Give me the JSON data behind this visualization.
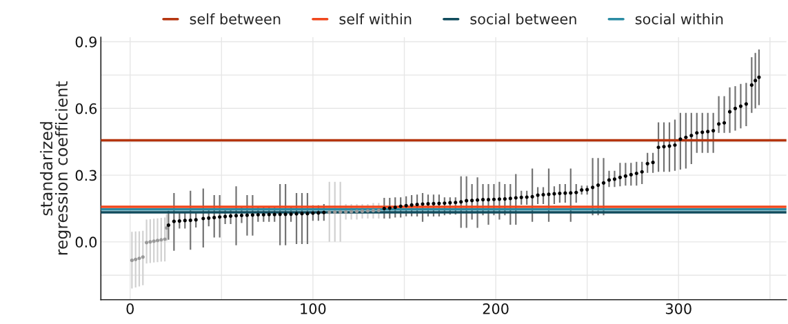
{
  "chart_data": {
    "type": "scatter",
    "ylabel": "standarized\nregression coefficient",
    "xlim": [
      -16,
      359
    ],
    "ylim": [
      -0.26,
      0.92
    ],
    "xticks": [
      0,
      {
        "value": 50,
        "label": null
      },
      100,
      {
        "value": 150,
        "label": null
      },
      200,
      {
        "value": 250,
        "label": null
      },
      300,
      {
        "value": 350,
        "label": null
      }
    ],
    "yticks": [
      {
        "value": -0.15,
        "label": null
      },
      {
        "value": 0,
        "label": "0.0"
      },
      {
        "value": 0.15,
        "label": null
      },
      0.3,
      {
        "value": 0.45,
        "label": null
      },
      0.6,
      {
        "value": 0.75,
        "label": null
      },
      0.9
    ],
    "grid": true,
    "legend": "top",
    "marker": "circle",
    "ref_lines": [
      {
        "axis": "y",
        "value": 0.457,
        "label": "self between",
        "color": "#b5350f"
      },
      {
        "axis": "y",
        "value": 0.158,
        "label": "self within",
        "color": "#f0471c"
      },
      {
        "axis": "y",
        "value": 0.133,
        "label": "social between",
        "color": "#0f4b5c"
      },
      {
        "axis": "y",
        "value": 0.146,
        "label": "social within",
        "color": "#2a8ba3"
      }
    ],
    "series": [
      {
        "color": "#999999",
        "x": [
          1,
          3,
          5,
          7,
          9,
          11,
          13,
          15,
          17,
          19,
          20,
          109,
          112,
          115,
          118,
          121,
          124,
          127,
          130,
          133,
          136
        ],
        "values": [
          -0.083,
          -0.079,
          -0.074,
          -0.068,
          -0.003,
          0.0,
          0.003,
          0.006,
          0.009,
          0.012,
          0.063,
          0.133,
          0.134,
          0.135,
          0.135,
          0.136,
          0.137,
          0.138,
          0.139,
          0.14,
          0.141
        ],
        "errors": [
          [
            -0.21,
            0.045
          ],
          [
            -0.205,
            0.047
          ],
          [
            -0.2,
            0.048
          ],
          [
            -0.195,
            0.05
          ],
          [
            -0.097,
            0.1
          ],
          [
            -0.095,
            0.102
          ],
          [
            -0.093,
            0.104
          ],
          [
            -0.091,
            0.106
          ],
          [
            -0.089,
            0.108
          ],
          [
            -0.088,
            0.11
          ],
          [
            0.005,
            0.125
          ],
          [
            0.0,
            0.27
          ],
          [
            0.0,
            0.27
          ],
          [
            0.0,
            0.27
          ],
          [
            0.1,
            0.17
          ],
          [
            0.1,
            0.17
          ],
          [
            0.1,
            0.17
          ],
          [
            0.105,
            0.17
          ],
          [
            0.105,
            0.17
          ],
          [
            0.105,
            0.175
          ],
          [
            0.105,
            0.175
          ]
        ]
      },
      {
        "color": "#000000",
        "x": [
          21,
          24,
          27,
          30,
          33,
          36,
          40,
          43,
          46,
          49,
          52,
          55,
          58,
          61,
          64,
          67,
          70,
          73,
          76,
          79,
          82,
          85,
          88,
          91,
          94,
          97,
          100,
          103,
          106,
          139,
          142,
          145,
          148,
          151,
          154,
          157,
          160,
          163,
          166,
          169,
          172,
          175,
          178,
          181,
          184,
          187,
          190,
          193,
          196,
          199,
          202,
          205,
          208,
          211,
          214,
          217,
          220,
          223,
          226,
          229,
          232,
          235,
          238,
          241,
          244,
          247,
          250,
          253,
          256,
          259,
          262,
          265,
          268,
          271,
          274,
          277,
          280,
          283,
          286,
          289,
          292,
          295,
          298,
          301,
          304,
          307,
          310,
          313,
          316,
          319,
          322,
          325,
          328,
          331,
          334,
          337,
          340,
          342,
          344
        ],
        "values": [
          0.075,
          0.092,
          0.094,
          0.096,
          0.097,
          0.099,
          0.105,
          0.107,
          0.109,
          0.112,
          0.114,
          0.116,
          0.118,
          0.119,
          0.12,
          0.121,
          0.122,
          0.122,
          0.123,
          0.123,
          0.124,
          0.124,
          0.125,
          0.126,
          0.127,
          0.127,
          0.129,
          0.13,
          0.132,
          0.15,
          0.152,
          0.155,
          0.16,
          0.163,
          0.166,
          0.168,
          0.17,
          0.171,
          0.172,
          0.173,
          0.174,
          0.176,
          0.177,
          0.18,
          0.185,
          0.186,
          0.188,
          0.19,
          0.19,
          0.191,
          0.192,
          0.193,
          0.195,
          0.198,
          0.2,
          0.201,
          0.203,
          0.21,
          0.212,
          0.214,
          0.216,
          0.218,
          0.219,
          0.22,
          0.222,
          0.233,
          0.235,
          0.245,
          0.255,
          0.265,
          0.278,
          0.282,
          0.29,
          0.296,
          0.302,
          0.308,
          0.315,
          0.352,
          0.357,
          0.425,
          0.428,
          0.431,
          0.435,
          0.462,
          0.47,
          0.478,
          0.49,
          0.493,
          0.496,
          0.5,
          0.53,
          0.535,
          0.585,
          0.6,
          0.61,
          0.62,
          0.705,
          0.725,
          0.74
        ],
        "errors": [
          [
            0.01,
            0.14
          ],
          [
            -0.04,
            0.22
          ],
          [
            0.06,
            0.13
          ],
          [
            0.06,
            0.13
          ],
          [
            -0.035,
            0.23
          ],
          [
            0.065,
            0.135
          ],
          [
            -0.025,
            0.24
          ],
          [
            0.07,
            0.145
          ],
          [
            0.02,
            0.21
          ],
          [
            0.02,
            0.21
          ],
          [
            0.08,
            0.15
          ],
          [
            0.08,
            0.15
          ],
          [
            -0.015,
            0.25
          ],
          [
            0.085,
            0.155
          ],
          [
            0.028,
            0.21
          ],
          [
            0.028,
            0.21
          ],
          [
            0.09,
            0.155
          ],
          [
            0.09,
            0.155
          ],
          [
            0.09,
            0.155
          ],
          [
            0.09,
            0.155
          ],
          [
            -0.015,
            0.26
          ],
          [
            -0.015,
            0.26
          ],
          [
            0.09,
            0.16
          ],
          [
            -0.01,
            0.22
          ],
          [
            -0.01,
            0.22
          ],
          [
            -0.01,
            0.22
          ],
          [
            0.095,
            0.165
          ],
          [
            0.095,
            0.165
          ],
          [
            0.095,
            0.17
          ],
          [
            0.105,
            0.198
          ],
          [
            0.105,
            0.198
          ],
          [
            0.11,
            0.2
          ],
          [
            0.11,
            0.2
          ],
          [
            0.115,
            0.205
          ],
          [
            0.115,
            0.21
          ],
          [
            0.114,
            0.213
          ],
          [
            0.09,
            0.22
          ],
          [
            0.114,
            0.213
          ],
          [
            0.114,
            0.213
          ],
          [
            0.114,
            0.213
          ],
          [
            0.12,
            0.2
          ],
          [
            0.123,
            0.2
          ],
          [
            0.123,
            0.2
          ],
          [
            0.063,
            0.295
          ],
          [
            0.063,
            0.295
          ],
          [
            0.1,
            0.26
          ],
          [
            0.063,
            0.29
          ],
          [
            0.12,
            0.26
          ],
          [
            0.077,
            0.26
          ],
          [
            0.12,
            0.26
          ],
          [
            0.1,
            0.27
          ],
          [
            0.12,
            0.26
          ],
          [
            0.077,
            0.26
          ],
          [
            0.077,
            0.305
          ],
          [
            0.167,
            0.23
          ],
          [
            0.167,
            0.23
          ],
          [
            0.09,
            0.33
          ],
          [
            0.17,
            0.246
          ],
          [
            0.17,
            0.246
          ],
          [
            0.09,
            0.33
          ],
          [
            0.17,
            0.25
          ],
          [
            0.176,
            0.26
          ],
          [
            0.176,
            0.26
          ],
          [
            0.09,
            0.33
          ],
          [
            0.176,
            0.26
          ],
          [
            0.213,
            0.253
          ],
          [
            0.213,
            0.253
          ],
          [
            0.12,
            0.377
          ],
          [
            0.12,
            0.377
          ],
          [
            0.12,
            0.377
          ],
          [
            0.247,
            0.32
          ],
          [
            0.247,
            0.32
          ],
          [
            0.25,
            0.355
          ],
          [
            0.253,
            0.355
          ],
          [
            0.253,
            0.355
          ],
          [
            0.253,
            0.36
          ],
          [
            0.26,
            0.36
          ],
          [
            0.31,
            0.4
          ],
          [
            0.31,
            0.4
          ],
          [
            0.315,
            0.537
          ],
          [
            0.315,
            0.537
          ],
          [
            0.315,
            0.537
          ],
          [
            0.32,
            0.55
          ],
          [
            0.325,
            0.58
          ],
          [
            0.33,
            0.58
          ],
          [
            0.35,
            0.58
          ],
          [
            0.4,
            0.58
          ],
          [
            0.4,
            0.58
          ],
          [
            0.4,
            0.58
          ],
          [
            0.4,
            0.58
          ],
          [
            0.49,
            0.655
          ],
          [
            0.49,
            0.655
          ],
          [
            0.49,
            0.695
          ],
          [
            0.5,
            0.7
          ],
          [
            0.51,
            0.71
          ],
          [
            0.52,
            0.715
          ],
          [
            0.58,
            0.83
          ],
          [
            0.6,
            0.85
          ],
          [
            0.615,
            0.865
          ]
        ]
      }
    ]
  }
}
